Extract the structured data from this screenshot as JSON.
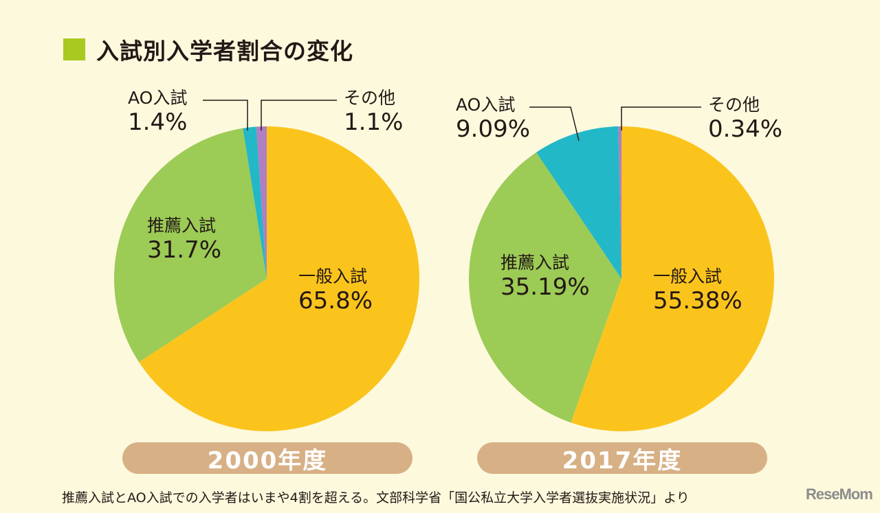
{
  "title": "入試別入学者割合の変化",
  "footer": "推薦入試とAO入試での入学者はいまや4割を超える。文部科学省「国公私立大学入学者選抜実施状況」より",
  "logo": "ReseMom",
  "colors": {
    "一般入試": "#fbc41d",
    "推薦入試": "#9ccb56",
    "AO入試": "#22b8c8",
    "その他": "#b07fc1",
    "background": "#fdf9dd",
    "year_pill": "#d8b086",
    "title_square": "#a8c920"
  },
  "chart_data": [
    {
      "type": "pie",
      "year_label": "2000年度",
      "order": "clockwise from top",
      "slices": [
        {
          "label": "一般入試",
          "value": 65.8,
          "text": "65.8%"
        },
        {
          "label": "推薦入試",
          "value": 31.7,
          "text": "31.7%"
        },
        {
          "label": "AO入試",
          "value": 1.4,
          "text": "1.4%"
        },
        {
          "label": "その他",
          "value": 1.1,
          "text": "1.1%"
        }
      ]
    },
    {
      "type": "pie",
      "year_label": "2017年度",
      "order": "clockwise from top",
      "slices": [
        {
          "label": "一般入試",
          "value": 55.38,
          "text": "55.38%"
        },
        {
          "label": "推薦入試",
          "value": 35.19,
          "text": "35.19%"
        },
        {
          "label": "AO入試",
          "value": 9.09,
          "text": "9.09%"
        },
        {
          "label": "その他",
          "value": 0.34,
          "text": "0.34%"
        }
      ]
    }
  ]
}
